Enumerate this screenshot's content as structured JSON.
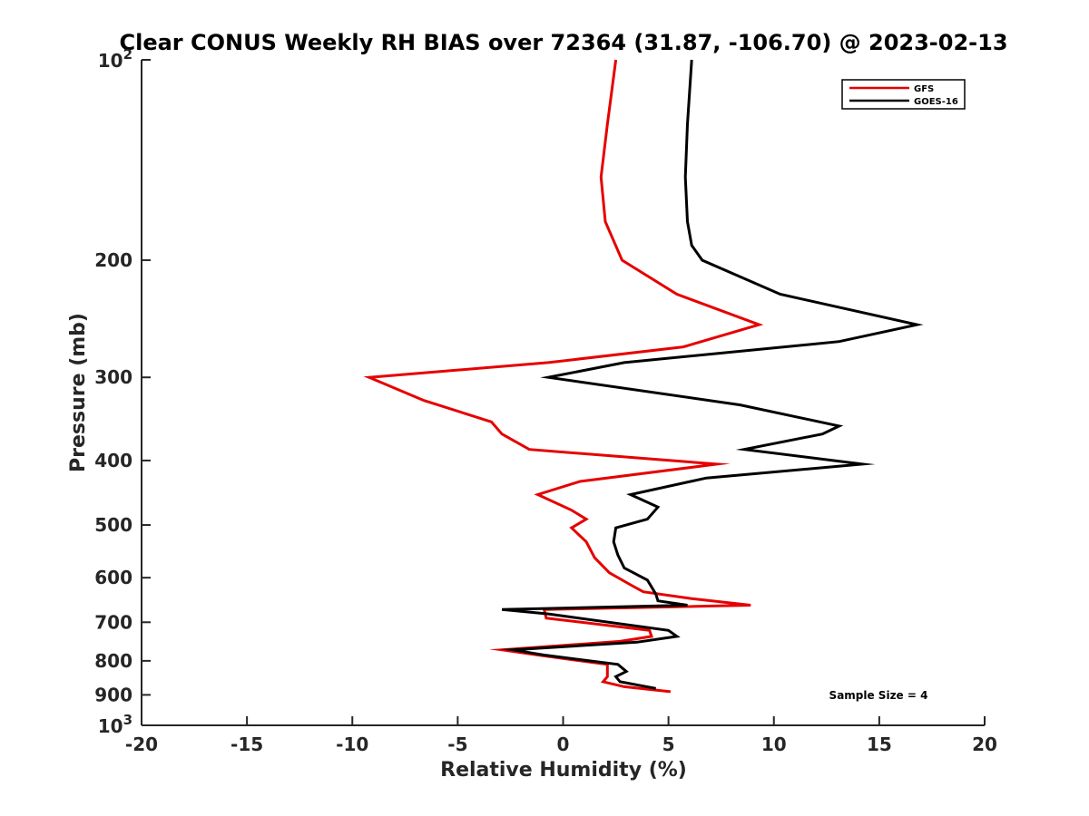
{
  "chart_data": {
    "type": "line",
    "title": "Clear CONUS Weekly RH BIAS over 72364 (31.87, -106.70) @ 2023-02-13",
    "xlabel": "Relative Humidity (%)",
    "ylabel": "Pressure (mb)",
    "xlim": [
      -20,
      20
    ],
    "ylim": [
      100,
      1000
    ],
    "y_scale": "log",
    "y_reversed": true,
    "grid": false,
    "legend_position": "top-right",
    "x_ticks": [
      "-20",
      "-15",
      "-10",
      "-5",
      "0",
      "5",
      "10",
      "15",
      "20"
    ],
    "x_tick_values": [
      -20,
      -15,
      -10,
      -5,
      0,
      5,
      10,
      15,
      20
    ],
    "y_ticks": [
      "200",
      "300",
      "400",
      "500",
      "600",
      "700",
      "800",
      "900"
    ],
    "y_tick_values": [
      200,
      300,
      400,
      500,
      600,
      700,
      800,
      900
    ],
    "y_end_ticks": [
      {
        "base": "10",
        "exp": "2",
        "value": 100
      },
      {
        "base": "10",
        "exp": "3",
        "value": 1000
      }
    ],
    "annotation": "Sample Size = 4",
    "series": [
      {
        "name": "GFS",
        "color": "#e60000",
        "points": [
          [
            2.5,
            100
          ],
          [
            2.1,
            125
          ],
          [
            1.8,
            150
          ],
          [
            2.0,
            175
          ],
          [
            2.8,
            200
          ],
          [
            5.4,
            225
          ],
          [
            9.3,
            250
          ],
          [
            5.7,
            270
          ],
          [
            -0.7,
            285
          ],
          [
            -9.2,
            300
          ],
          [
            -6.6,
            325
          ],
          [
            -3.4,
            350
          ],
          [
            -2.9,
            365
          ],
          [
            -1.6,
            385
          ],
          [
            7.3,
            405
          ],
          [
            0.8,
            430
          ],
          [
            -1.2,
            450
          ],
          [
            0.4,
            475
          ],
          [
            1.1,
            490
          ],
          [
            0.4,
            505
          ],
          [
            1.1,
            530
          ],
          [
            1.5,
            560
          ],
          [
            2.2,
            590
          ],
          [
            3.2,
            615
          ],
          [
            3.8,
            630
          ],
          [
            6.1,
            645
          ],
          [
            8.9,
            660
          ],
          [
            -0.9,
            670
          ],
          [
            -0.8,
            690
          ],
          [
            4.1,
            720
          ],
          [
            4.2,
            735
          ],
          [
            2.7,
            748
          ],
          [
            -2.9,
            770
          ],
          [
            -1.1,
            785
          ],
          [
            2.1,
            810
          ],
          [
            2.1,
            830
          ],
          [
            2.1,
            845
          ],
          [
            1.9,
            860
          ],
          [
            2.9,
            875
          ],
          [
            5.1,
            890
          ]
        ]
      },
      {
        "name": "GOES-16",
        "color": "#000000",
        "points": [
          [
            6.1,
            100
          ],
          [
            5.9,
            125
          ],
          [
            5.8,
            150
          ],
          [
            5.9,
            175
          ],
          [
            6.1,
            190
          ],
          [
            6.6,
            200
          ],
          [
            10.3,
            225
          ],
          [
            16.8,
            250
          ],
          [
            13.1,
            265
          ],
          [
            2.9,
            285
          ],
          [
            -0.7,
            300
          ],
          [
            8.4,
            330
          ],
          [
            13.1,
            355
          ],
          [
            12.3,
            365
          ],
          [
            8.6,
            385
          ],
          [
            14.2,
            405
          ],
          [
            6.8,
            425
          ],
          [
            3.2,
            450
          ],
          [
            4.5,
            470
          ],
          [
            4.0,
            490
          ],
          [
            2.5,
            505
          ],
          [
            2.4,
            530
          ],
          [
            2.6,
            555
          ],
          [
            2.9,
            580
          ],
          [
            4.0,
            605
          ],
          [
            4.4,
            635
          ],
          [
            4.5,
            650
          ],
          [
            5.9,
            660
          ],
          [
            -2.9,
            670
          ],
          [
            -0.7,
            680
          ],
          [
            5.0,
            720
          ],
          [
            5.4,
            735
          ],
          [
            3.5,
            750
          ],
          [
            -2.4,
            770
          ],
          [
            -0.8,
            785
          ],
          [
            2.6,
            810
          ],
          [
            3.0,
            830
          ],
          [
            2.5,
            845
          ],
          [
            2.7,
            860
          ],
          [
            4.4,
            880
          ]
        ]
      }
    ]
  }
}
